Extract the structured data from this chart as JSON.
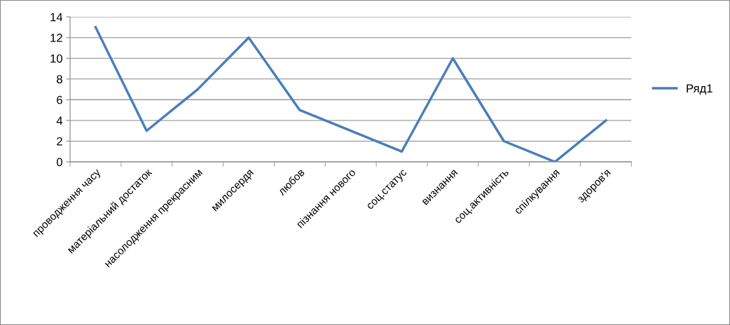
{
  "chart_data": {
    "type": "line",
    "categories": [
      "проводження часу",
      "матеріальний достаток",
      "насолодження прекрасним",
      "милосердя",
      "любов",
      "пізнання нового",
      "соц.статус",
      "визнання",
      "соц.активність",
      "спілкування",
      "здоров'я"
    ],
    "series": [
      {
        "name": "Ряд1",
        "color": "#4a7ebb",
        "values": [
          13,
          3,
          7,
          12,
          5,
          3,
          1,
          10,
          2,
          0,
          4
        ]
      }
    ],
    "ylim": [
      0,
      14
    ],
    "yticks": [
      0,
      2,
      4,
      6,
      8,
      10,
      12,
      14
    ],
    "grid": "y",
    "legend": "right",
    "marker": "none",
    "line_style": "solid"
  }
}
